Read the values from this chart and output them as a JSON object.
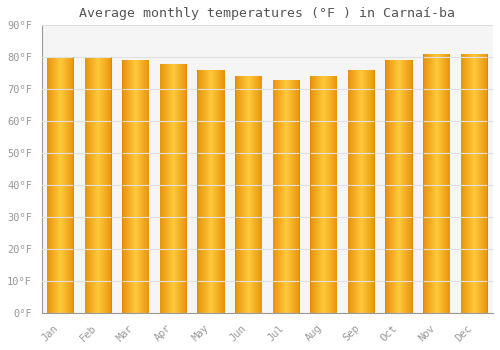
{
  "title": "Average monthly temperatures (°F ) in Carnaí-ba",
  "months": [
    "Jan",
    "Feb",
    "Mar",
    "Apr",
    "May",
    "Jun",
    "Jul",
    "Aug",
    "Sep",
    "Oct",
    "Nov",
    "Dec"
  ],
  "values": [
    80,
    80,
    79,
    78,
    76,
    74,
    73,
    74,
    76,
    79,
    81,
    81
  ],
  "bar_color_left": "#E8920A",
  "bar_color_center": "#FFC93C",
  "bar_color_right": "#F0A020",
  "background_color": "#FFFFFF",
  "plot_bg_color": "#F5F5F5",
  "grid_color": "#E0E0E0",
  "tick_label_color": "#999999",
  "title_color": "#555555",
  "ylim": [
    0,
    90
  ],
  "yticks": [
    0,
    10,
    20,
    30,
    40,
    50,
    60,
    70,
    80,
    90
  ],
  "ytick_labels": [
    "0°F",
    "10°F",
    "20°F",
    "30°F",
    "40°F",
    "50°F",
    "60°F",
    "70°F",
    "80°F",
    "90°F"
  ],
  "font_size_title": 9.5,
  "font_size_ticks": 7.5
}
